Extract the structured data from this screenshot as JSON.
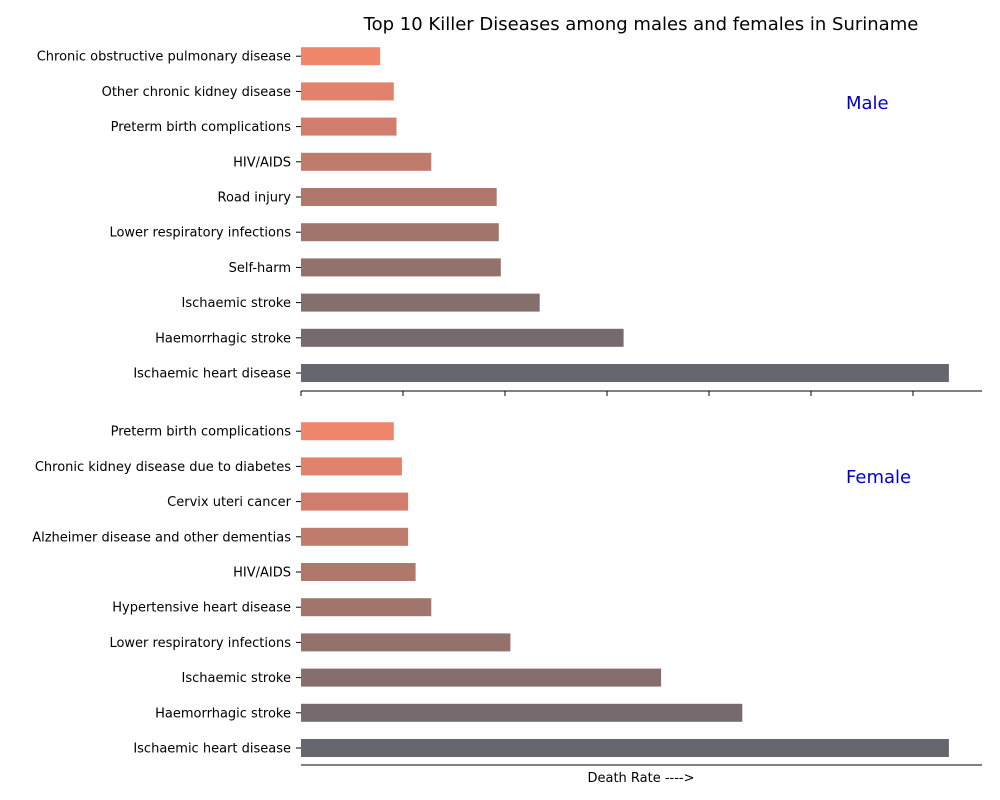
{
  "chart_data": {
    "type": "bar",
    "orientation": "horizontal",
    "title": "Top 10 Killer Diseases among males and females in Suriname",
    "xlabel": "Death Rate ---->",
    "xlim": [
      0,
      100
    ],
    "shared_x": true,
    "x_tick_labels_visible": false,
    "grid": false,
    "panels": [
      {
        "name": "Male",
        "label_color": "#0000cc",
        "categories": [
          "Ischaemic heart disease",
          "Haemorrhagic stroke",
          "Ischaemic stroke",
          "Self-harm",
          "Lower respiratory infections",
          "Road injury",
          "HIV/AIDS",
          "Preterm birth complications",
          "Other chronic kidney disease",
          "Chronic obstructive pulmonary disease"
        ],
        "values": [
          95,
          47.3,
          35,
          29.3,
          29,
          28.7,
          19.1,
          14,
          13.6,
          11.6
        ],
        "colors": [
          "#66666f",
          "#756a6e",
          "#846f6c",
          "#93726c",
          "#a1756c",
          "#b0786b",
          "#bf7b6c",
          "#d17d6d",
          "#e1826d",
          "#f0876d"
        ]
      },
      {
        "name": "Female",
        "label_color": "#0000cc",
        "categories": [
          "Ischaemic heart disease",
          "Haemorrhagic stroke",
          "Ischaemic stroke",
          "Lower respiratory infections",
          "Hypertensive heart disease",
          "HIV/AIDS",
          "Alzheimer disease and other dementias",
          "Cervix uteri cancer",
          "Chronic kidney disease due to diabetes",
          "Preterm birth complications"
        ],
        "values": [
          95,
          64.7,
          52.8,
          30.7,
          19.1,
          16.8,
          15.7,
          15.7,
          14.8,
          13.6
        ],
        "colors": [
          "#66666f",
          "#756a6e",
          "#846f6c",
          "#93726c",
          "#a1756c",
          "#b0786b",
          "#bf7b6c",
          "#d17d6d",
          "#e1826d",
          "#f0876d"
        ]
      }
    ]
  }
}
